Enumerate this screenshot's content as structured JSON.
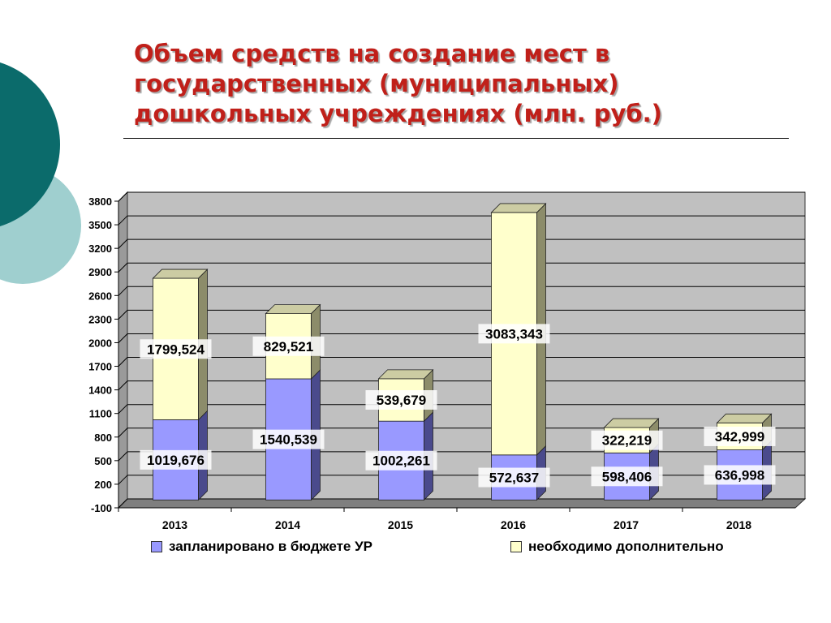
{
  "title": "Объем средств на создание мест в государственных (муниципальных) дошкольных учреждениях (млн. руб.)",
  "colors": {
    "planned": "#9999ff",
    "additional": "#ffffcc",
    "title": "#c0201a",
    "wall": "#c0c0c0",
    "deco_dark": "#0b6b6b",
    "deco_light": "#9fcfcf"
  },
  "chart_data": {
    "type": "bar",
    "stacked": true,
    "three_d": true,
    "categories": [
      "2013",
      "2014",
      "2015",
      "2016",
      "2017",
      "2018"
    ],
    "series": [
      {
        "name": "запланировано в бюджете УР",
        "color": "#9999ff",
        "values": [
          1019.676,
          1540.539,
          1002.261,
          572.637,
          598.406,
          636.998
        ],
        "labels": [
          "1019,676",
          "1540,539",
          "1002,261",
          "572,637",
          "598,406",
          "636,998"
        ]
      },
      {
        "name": "необходимо дополнительно",
        "color": "#ffffcc",
        "values": [
          1799.524,
          829.521,
          539.679,
          3083.343,
          322.219,
          342.999
        ],
        "labels": [
          "1799,524",
          "829,521",
          "539,679",
          "3083,343",
          "322,219",
          "342,999"
        ]
      }
    ],
    "ylim": [
      -100,
      3800
    ],
    "yticks": [
      "3800",
      "3500",
      "3200",
      "2900",
      "2600",
      "2300",
      "2000",
      "1700",
      "1400",
      "1100",
      "800",
      "500",
      "200",
      "-100"
    ],
    "grid": true,
    "legend": "bottom"
  }
}
